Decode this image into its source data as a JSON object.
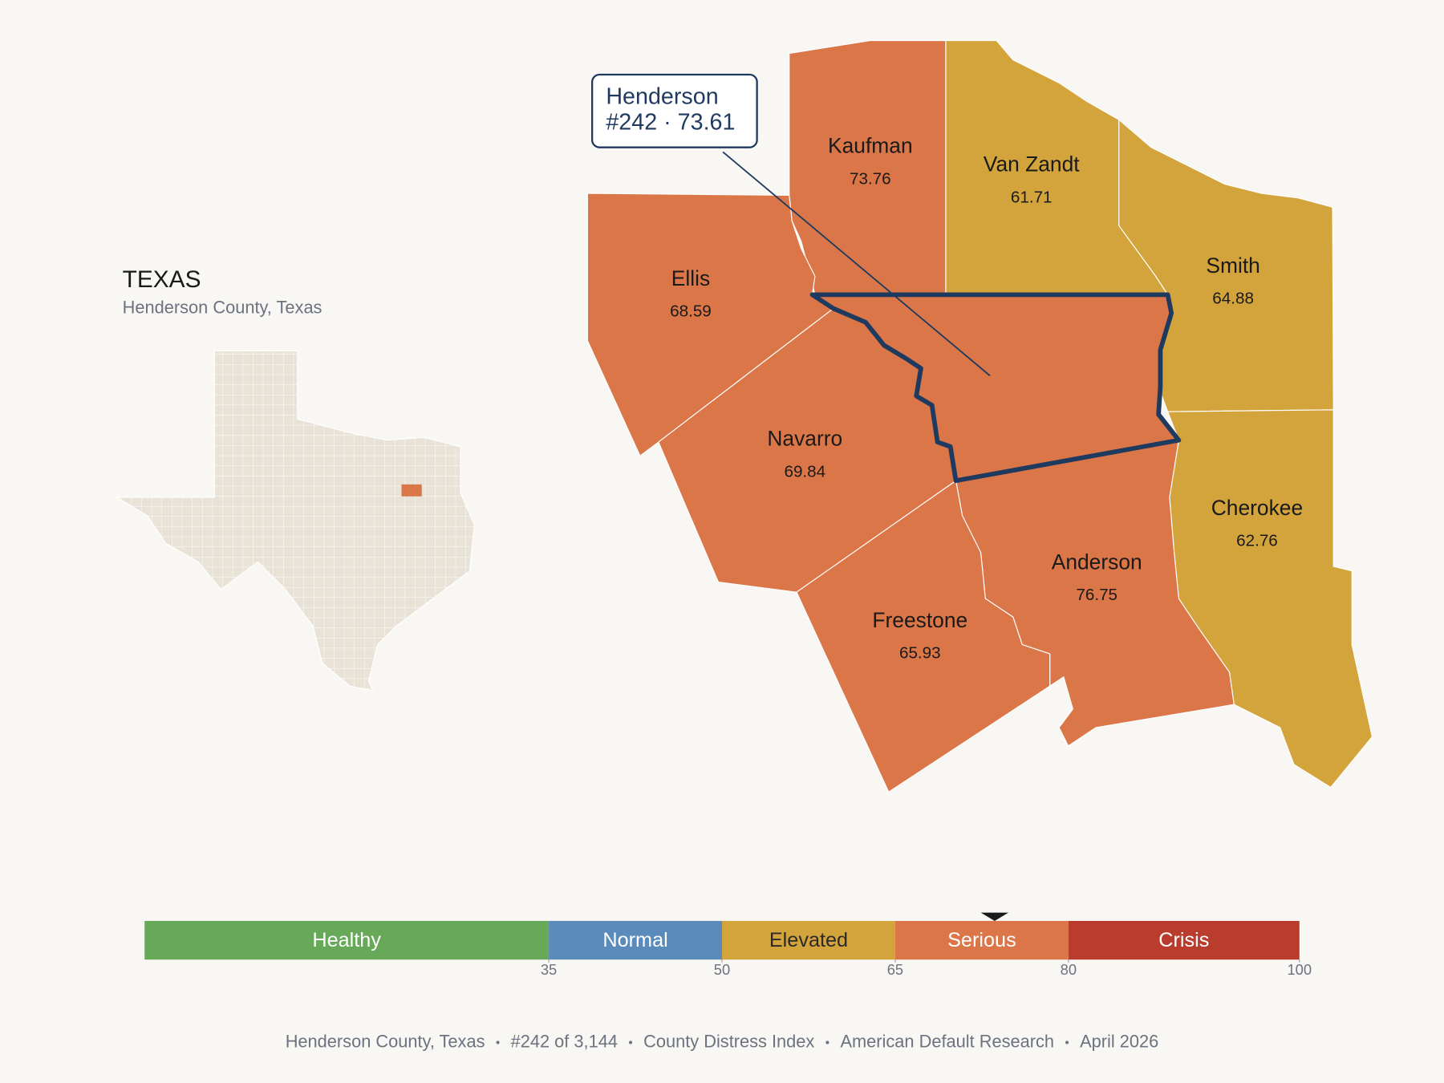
{
  "map_title": "TEXAS",
  "map_subtitle": "Henderson County, Texas",
  "callout": {
    "name": "Henderson",
    "detail": "#242 · 73.61"
  },
  "focus": {
    "name": "Henderson",
    "score": 73.61
  },
  "counties": [
    {
      "name": "Kaufman",
      "value": 73.76
    },
    {
      "name": "Van Zandt",
      "value": 61.71
    },
    {
      "name": "Smith",
      "value": 64.88
    },
    {
      "name": "Ellis",
      "value": 68.59
    },
    {
      "name": "Navarro",
      "value": 69.84
    },
    {
      "name": "Cherokee",
      "value": 62.76
    },
    {
      "name": "Anderson",
      "value": 76.75
    },
    {
      "name": "Freestone",
      "value": 65.93
    }
  ],
  "scale": {
    "range": [
      0,
      100
    ],
    "ticks": [
      35,
      50,
      65,
      80,
      100
    ],
    "bands": [
      {
        "label": "Healthy",
        "from": 0,
        "to": 35,
        "color": "#67a859",
        "text_color": "#ffffff"
      },
      {
        "label": "Normal",
        "from": 35,
        "to": 50,
        "color": "#5b8bba",
        "text_color": "#ffffff"
      },
      {
        "label": "Elevated",
        "from": 50,
        "to": 65,
        "color": "#d4a43c",
        "text_color": "#2a2a2a"
      },
      {
        "label": "Serious",
        "from": 65,
        "to": 80,
        "color": "#db7649",
        "text_color": "#ffffff"
      },
      {
        "label": "Crisis",
        "from": 80,
        "to": 100,
        "color": "#b93c2c",
        "text_color": "#ffffff"
      }
    ]
  },
  "footer": [
    "Henderson County, Texas",
    "#242 of 3,144",
    "County Distress Index",
    "American Default Research",
    "April 2026"
  ]
}
